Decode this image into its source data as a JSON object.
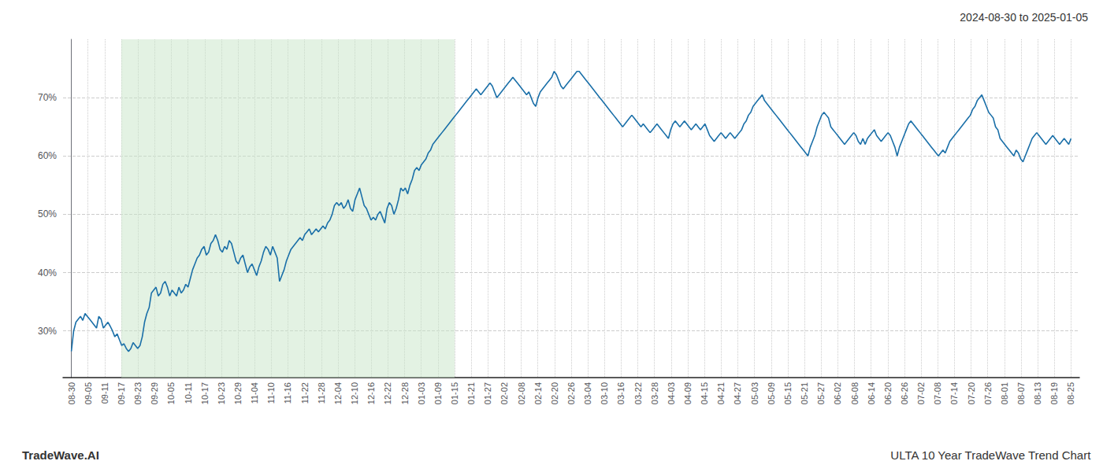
{
  "chart_data": {
    "type": "line",
    "title": "2024-08-30 to 2025-01-05",
    "footer_left": "TradeWave.AI",
    "footer_right": "ULTA 10 Year TradeWave Trend Chart",
    "color": "#1a6fa8",
    "grid": true,
    "shaded_range": [
      3,
      23
    ],
    "shade_color": "#c8e6c8",
    "xlim": [
      -0.5,
      60.5
    ],
    "xticks": [
      {
        "value": 0,
        "label": "08-30"
      },
      {
        "value": 1,
        "label": "09-05"
      },
      {
        "value": 2,
        "label": "09-11"
      },
      {
        "value": 3,
        "label": "09-17"
      },
      {
        "value": 4,
        "label": "09-23"
      },
      {
        "value": 5,
        "label": "09-29"
      },
      {
        "value": 6,
        "label": "10-05"
      },
      {
        "value": 7,
        "label": "10-11"
      },
      {
        "value": 8,
        "label": "10-17"
      },
      {
        "value": 9,
        "label": "10-23"
      },
      {
        "value": 10,
        "label": "10-29"
      },
      {
        "value": 11,
        "label": "11-04"
      },
      {
        "value": 12,
        "label": "11-10"
      },
      {
        "value": 13,
        "label": "11-16"
      },
      {
        "value": 14,
        "label": "11-22"
      },
      {
        "value": 15,
        "label": "11-28"
      },
      {
        "value": 16,
        "label": "12-04"
      },
      {
        "value": 17,
        "label": "12-10"
      },
      {
        "value": 18,
        "label": "12-16"
      },
      {
        "value": 19,
        "label": "12-22"
      },
      {
        "value": 20,
        "label": "12-28"
      },
      {
        "value": 21,
        "label": "01-03"
      },
      {
        "value": 22,
        "label": "01-09"
      },
      {
        "value": 23,
        "label": "01-15"
      },
      {
        "value": 24,
        "label": "01-21"
      },
      {
        "value": 25,
        "label": "01-27"
      },
      {
        "value": 26,
        "label": "02-02"
      },
      {
        "value": 27,
        "label": "02-08"
      },
      {
        "value": 28,
        "label": "02-14"
      },
      {
        "value": 29,
        "label": "02-20"
      },
      {
        "value": 30,
        "label": "02-26"
      },
      {
        "value": 31,
        "label": "03-04"
      },
      {
        "value": 32,
        "label": "03-10"
      },
      {
        "value": 33,
        "label": "03-16"
      },
      {
        "value": 34,
        "label": "03-22"
      },
      {
        "value": 35,
        "label": "03-28"
      },
      {
        "value": 36,
        "label": "04-03"
      },
      {
        "value": 37,
        "label": "04-09"
      },
      {
        "value": 38,
        "label": "04-15"
      },
      {
        "value": 39,
        "label": "04-21"
      },
      {
        "value": 40,
        "label": "04-27"
      },
      {
        "value": 41,
        "label": "05-03"
      },
      {
        "value": 42,
        "label": "05-09"
      },
      {
        "value": 43,
        "label": "05-15"
      },
      {
        "value": 44,
        "label": "05-21"
      },
      {
        "value": 45,
        "label": "05-27"
      },
      {
        "value": 46,
        "label": "06-02"
      },
      {
        "value": 47,
        "label": "06-08"
      },
      {
        "value": 48,
        "label": "06-14"
      },
      {
        "value": 49,
        "label": "06-20"
      },
      {
        "value": 50,
        "label": "06-26"
      },
      {
        "value": 51,
        "label": "07-02"
      },
      {
        "value": 52,
        "label": "07-08"
      },
      {
        "value": 53,
        "label": "07-14"
      },
      {
        "value": 54,
        "label": "07-20"
      },
      {
        "value": 55,
        "label": "07-26"
      },
      {
        "value": 56,
        "label": "08-01"
      },
      {
        "value": 57,
        "label": "08-07"
      },
      {
        "value": 58,
        "label": "08-13"
      },
      {
        "value": 59,
        "label": "08-19"
      },
      {
        "value": 60,
        "label": "08-25"
      }
    ],
    "ylim": [
      22,
      80
    ],
    "yticks": [
      {
        "value": 30,
        "label": "30%"
      },
      {
        "value": 40,
        "label": "40%"
      },
      {
        "value": 50,
        "label": "50%"
      },
      {
        "value": 60,
        "label": "60%"
      },
      {
        "value": 70,
        "label": "70%"
      }
    ],
    "x": [
      0,
      0.1373,
      0.2746,
      0.4119,
      0.5492,
      0.6865,
      0.8238,
      0.9611,
      1.0984,
      1.2357,
      1.373,
      1.5103,
      1.6476,
      1.7849,
      1.9222,
      2.0595,
      2.1968,
      2.3341,
      2.4714,
      2.6087,
      2.746,
      2.8833,
      3.0206,
      3.1579,
      3.2952,
      3.4325,
      3.5698,
      3.7071,
      3.8444,
      3.9817,
      4.119,
      4.2563,
      4.3936,
      4.5309,
      4.6682,
      4.8055,
      4.9428,
      5.0801,
      5.2174,
      5.3547,
      5.492,
      5.6293,
      5.7666,
      5.9039,
      6.0412,
      6.1785,
      6.3158,
      6.4531,
      6.5904,
      6.7277,
      6.865,
      7.0023,
      7.1396,
      7.2769,
      7.4142,
      7.5515,
      7.6888,
      7.8261,
      7.9634,
      8.1007,
      8.238,
      8.3753,
      8.5126,
      8.6499,
      8.7872,
      8.9245,
      9.0618,
      9.1991,
      9.3364,
      9.4737,
      9.611,
      9.7483,
      9.8856,
      10.0229,
      10.1602,
      10.2975,
      10.4348,
      10.5721,
      10.7094,
      10.8467,
      10.984,
      11.1213,
      11.2586,
      11.3959,
      11.5332,
      11.6705,
      11.8078,
      11.9451,
      12.0824,
      12.2197,
      12.357,
      12.4943,
      12.6316,
      12.7689,
      12.9062,
      13.0435,
      13.1808,
      13.3181,
      13.4554,
      13.5927,
      13.73,
      13.8673,
      14.0046,
      14.1419,
      14.2792,
      14.4165,
      14.5538,
      14.6911,
      14.8284,
      14.9657,
      15.103,
      15.2403,
      15.3776,
      15.5149,
      15.6522,
      15.7895,
      15.9268,
      16.0641,
      16.2014,
      16.3387,
      16.476,
      16.6133,
      16.7506,
      16.8879,
      17.0252,
      17.1625,
      17.2998,
      17.4371,
      17.5744,
      17.7117,
      17.849,
      17.9863,
      18.1236,
      18.2609,
      18.3982,
      18.5355,
      18.6728,
      18.8101,
      18.9474,
      19.0847,
      19.222,
      19.3593,
      19.4966,
      19.6339,
      19.7712,
      19.9085,
      20.0458,
      20.1831,
      20.3204,
      20.4577,
      20.595,
      20.7323,
      20.8696,
      21.0069,
      21.1442,
      21.2815,
      21.4188,
      21.5561,
      21.6934,
      21.8307,
      21.968,
      22.1053,
      22.2426,
      22.3799,
      22.5172,
      22.6545,
      22.7918,
      22.9291,
      23.0664,
      23.2037,
      23.341,
      23.4783,
      23.6156,
      23.7529,
      23.8902,
      24.0275,
      24.1648,
      24.3021,
      24.4394,
      24.5767,
      24.714,
      24.8513,
      24.9886,
      25.1259,
      25.2632,
      25.4005,
      25.5378,
      25.6751,
      25.8124,
      25.9497,
      26.087,
      26.2243,
      26.3616,
      26.4989,
      26.6362,
      26.7735,
      26.9108,
      27.0481,
      27.1854,
      27.3227,
      27.46,
      27.5973,
      27.7346,
      27.8719,
      28.0092,
      28.1465,
      28.2838,
      28.4211,
      28.5584,
      28.6957,
      28.833,
      28.9703,
      29.1076,
      29.2449,
      29.3822,
      29.5195,
      29.6568,
      29.7941,
      29.9314,
      30.0686,
      30.2059,
      30.3432,
      30.4805,
      30.6178,
      30.7551,
      30.8924,
      31.0297,
      31.167,
      31.3043,
      31.4416,
      31.5789,
      31.7162,
      31.8535,
      31.9908,
      32.1281,
      32.2654,
      32.4027,
      32.54,
      32.6773,
      32.8146,
      32.9519,
      33.0892,
      33.2265,
      33.3638,
      33.5011,
      33.6384,
      33.7757,
      33.913,
      34.0503,
      34.1876,
      34.3249,
      34.4622,
      34.5995,
      34.7368,
      34.8741,
      35.0114,
      35.1487,
      35.286,
      35.4233,
      35.5606,
      35.6979,
      35.8352,
      35.9725,
      36.1098,
      36.2471,
      36.3844,
      36.5217,
      36.659,
      36.7963,
      36.9336,
      37.0709,
      37.2082,
      37.3455,
      37.4828,
      37.6201,
      37.7574,
      37.8947,
      38.032,
      38.1693,
      38.3066,
      38.4439,
      38.5812,
      38.7185,
      38.8558,
      38.9931,
      39.1304,
      39.2677,
      39.405,
      39.5423,
      39.6796,
      39.8169,
      39.9542,
      40.0915,
      40.2288,
      40.3661,
      40.5034,
      40.6407,
      40.778,
      40.9153,
      41.0526,
      41.1899,
      41.3272,
      41.4645,
      41.6018,
      41.7391,
      41.8764,
      42.0137,
      42.151,
      42.2883,
      42.4256,
      42.5629,
      42.7002,
      42.8375,
      42.9748,
      43.1121,
      43.2494,
      43.3867,
      43.524,
      43.6613,
      43.7986,
      43.9359,
      44.0732,
      44.2105,
      44.3478,
      44.4851,
      44.6224,
      44.7597,
      44.897,
      45.0343,
      45.1716,
      45.3089,
      45.4462,
      45.5835,
      45.7208,
      45.8581,
      45.9954,
      46.1327,
      46.27,
      46.4073,
      46.5446,
      46.6819,
      46.8192,
      46.9565,
      47.0938,
      47.2311,
      47.3684,
      47.5057,
      47.643,
      47.7803,
      47.9176,
      48.0549,
      48.1922,
      48.3295,
      48.4668,
      48.6041,
      48.7414,
      48.8787,
      49.016,
      49.1533,
      49.2906,
      49.4279,
      49.5652,
      49.7025,
      49.8398,
      49.9771,
      50.1144,
      50.2517,
      50.389,
      50.5263,
      50.6636,
      50.8009,
      50.9382,
      51.0755,
      51.2128,
      51.3501,
      51.4874,
      51.6247,
      51.762,
      51.8993,
      52.0366,
      52.1739,
      52.3112,
      52.4485,
      52.5858,
      52.7231,
      52.8604,
      52.9977,
      53.135,
      53.2723,
      53.4096,
      53.5469,
      53.6842,
      53.8215,
      53.9588,
      54.0961,
      54.2334,
      54.3707,
      54.508,
      54.6453,
      54.7826,
      54.9199,
      55.0572,
      55.1945,
      55.3318,
      55.4691,
      55.6064,
      55.7437,
      55.881,
      56.0183,
      56.1556,
      56.2929,
      56.4302,
      56.5675,
      56.7048,
      56.8421,
      56.9794,
      57.1167,
      57.254,
      57.3913,
      57.5286,
      57.6659,
      57.8032,
      57.9405,
      58.0778,
      58.2151,
      58.3524,
      58.4897,
      58.627,
      58.7643,
      58.9016,
      59.0389,
      59.1762,
      59.3135,
      59.4508,
      59.5881,
      59.7254,
      59.8627,
      60
    ],
    "values": [
      26.5,
      30.0,
      31.5,
      32.0,
      32.5,
      31.8,
      33.0,
      32.5,
      32.0,
      31.5,
      31.0,
      30.5,
      32.5,
      32.0,
      30.5,
      31.0,
      31.5,
      30.8,
      30.0,
      29.0,
      29.5,
      28.5,
      27.5,
      27.8,
      27.0,
      26.5,
      27.0,
      28.0,
      27.5,
      27.0,
      27.5,
      29.0,
      31.5,
      33.0,
      34.0,
      36.5,
      37.0,
      37.5,
      36.0,
      36.5,
      38.0,
      38.5,
      37.5,
      36.0,
      37.0,
      36.5,
      36.0,
      37.5,
      36.5,
      37.0,
      38.0,
      37.5,
      39.0,
      40.5,
      41.5,
      42.5,
      43.0,
      44.0,
      44.5,
      43.0,
      43.5,
      45.0,
      45.5,
      46.5,
      45.5,
      44.0,
      43.5,
      44.5,
      44.0,
      45.5,
      45.0,
      43.5,
      42.0,
      41.5,
      42.5,
      43.0,
      41.5,
      40.0,
      41.0,
      41.5,
      40.5,
      39.5,
      41.0,
      42.0,
      43.5,
      44.5,
      44.0,
      43.0,
      44.5,
      43.5,
      42.5,
      38.5,
      39.5,
      40.5,
      42.0,
      43.0,
      44.0,
      44.5,
      45.0,
      45.5,
      46.0,
      45.5,
      46.5,
      47.0,
      47.5,
      46.5,
      47.0,
      47.5,
      47.0,
      47.5,
      48.0,
      47.5,
      48.5,
      49.0,
      50.0,
      51.5,
      52.0,
      51.5,
      52.0,
      51.0,
      51.5,
      52.5,
      51.0,
      50.5,
      52.5,
      53.5,
      54.5,
      53.0,
      51.5,
      51.0,
      50.0,
      49.0,
      49.5,
      49.0,
      50.0,
      50.5,
      49.5,
      48.5,
      51.0,
      52.0,
      51.5,
      50.0,
      51.0,
      52.5,
      54.5,
      54.0,
      54.5,
      53.5,
      55.0,
      56.0,
      57.5,
      58.0,
      57.5,
      58.5,
      59.0,
      59.5,
      60.5,
      61.0,
      62.0,
      62.5,
      63.0,
      63.5,
      64.0,
      64.5,
      65.0,
      65.5,
      66.0,
      66.5,
      67.0,
      67.5,
      68.0,
      68.5,
      69.0,
      69.5,
      70.0,
      70.5,
      71.0,
      71.5,
      71.0,
      70.5,
      71.0,
      71.5,
      72.0,
      72.5,
      72.0,
      71.0,
      70.0,
      70.5,
      71.0,
      71.5,
      72.0,
      72.5,
      73.0,
      73.5,
      73.0,
      72.5,
      72.0,
      71.5,
      71.0,
      70.5,
      71.0,
      70.0,
      69.0,
      68.5,
      70.0,
      71.0,
      71.5,
      72.0,
      72.5,
      73.0,
      73.5,
      74.5,
      74.0,
      73.0,
      72.0,
      71.5,
      72.0,
      72.5,
      73.0,
      73.5,
      74.0,
      74.5,
      74.5,
      74.0,
      73.5,
      73.0,
      72.5,
      72.0,
      71.5,
      71.0,
      70.5,
      70.0,
      69.5,
      69.0,
      68.5,
      68.0,
      67.5,
      67.0,
      66.5,
      66.0,
      65.5,
      65.0,
      65.5,
      66.0,
      66.5,
      67.0,
      66.5,
      66.0,
      65.5,
      65.0,
      65.5,
      65.0,
      64.5,
      64.0,
      64.5,
      65.0,
      65.5,
      65.0,
      64.5,
      64.0,
      63.5,
      63.0,
      64.5,
      65.5,
      66.0,
      65.5,
      65.0,
      65.5,
      66.0,
      65.5,
      65.0,
      64.5,
      65.0,
      65.5,
      65.0,
      64.5,
      65.0,
      65.5,
      64.5,
      63.5,
      63.0,
      62.5,
      63.0,
      63.5,
      64.0,
      63.5,
      63.0,
      63.5,
      64.0,
      63.5,
      63.0,
      63.5,
      64.0,
      64.5,
      65.5,
      66.0,
      67.0,
      67.5,
      68.5,
      69.0,
      69.5,
      70.0,
      70.5,
      69.5,
      69.0,
      68.5,
      68.0,
      67.5,
      67.0,
      66.5,
      66.0,
      65.5,
      65.0,
      64.5,
      64.0,
      63.5,
      63.0,
      62.5,
      62.0,
      61.5,
      61.0,
      60.5,
      60.0,
      61.5,
      62.5,
      63.5,
      65.0,
      66.0,
      67.0,
      67.5,
      67.0,
      66.5,
      65.0,
      64.5,
      64.0,
      63.5,
      63.0,
      62.5,
      62.0,
      62.5,
      63.0,
      63.5,
      64.0,
      63.5,
      62.5,
      62.0,
      63.0,
      62.0,
      63.0,
      63.5,
      64.0,
      64.5,
      63.5,
      63.0,
      62.5,
      63.0,
      63.5,
      64.0,
      63.5,
      62.5,
      61.5,
      60.0,
      61.5,
      62.5,
      63.5,
      64.5,
      65.5,
      66.0,
      65.5,
      65.0,
      64.5,
      64.0,
      63.5,
      63.0,
      62.5,
      62.0,
      61.5,
      61.0,
      60.5,
      60.0,
      60.5,
      61.0,
      60.5,
      61.5,
      62.5,
      63.0,
      63.5,
      64.0,
      64.5,
      65.0,
      65.5,
      66.0,
      66.5,
      67.0,
      68.0,
      68.5,
      69.5,
      70.0,
      70.5,
      69.5,
      68.5,
      67.5,
      67.0,
      66.5,
      65.0,
      64.5,
      63.0,
      62.5,
      62.0,
      61.5,
      61.0,
      60.5,
      60.0,
      61.0,
      60.5,
      59.5,
      59.0,
      60.0,
      61.0,
      62.0,
      63.0,
      63.5,
      64.0,
      63.5,
      63.0,
      62.5,
      62.0,
      62.5,
      63.0,
      63.5,
      63.0,
      62.5,
      62.0,
      62.5,
      63.0,
      62.5,
      62.0,
      63.0
    ]
  }
}
